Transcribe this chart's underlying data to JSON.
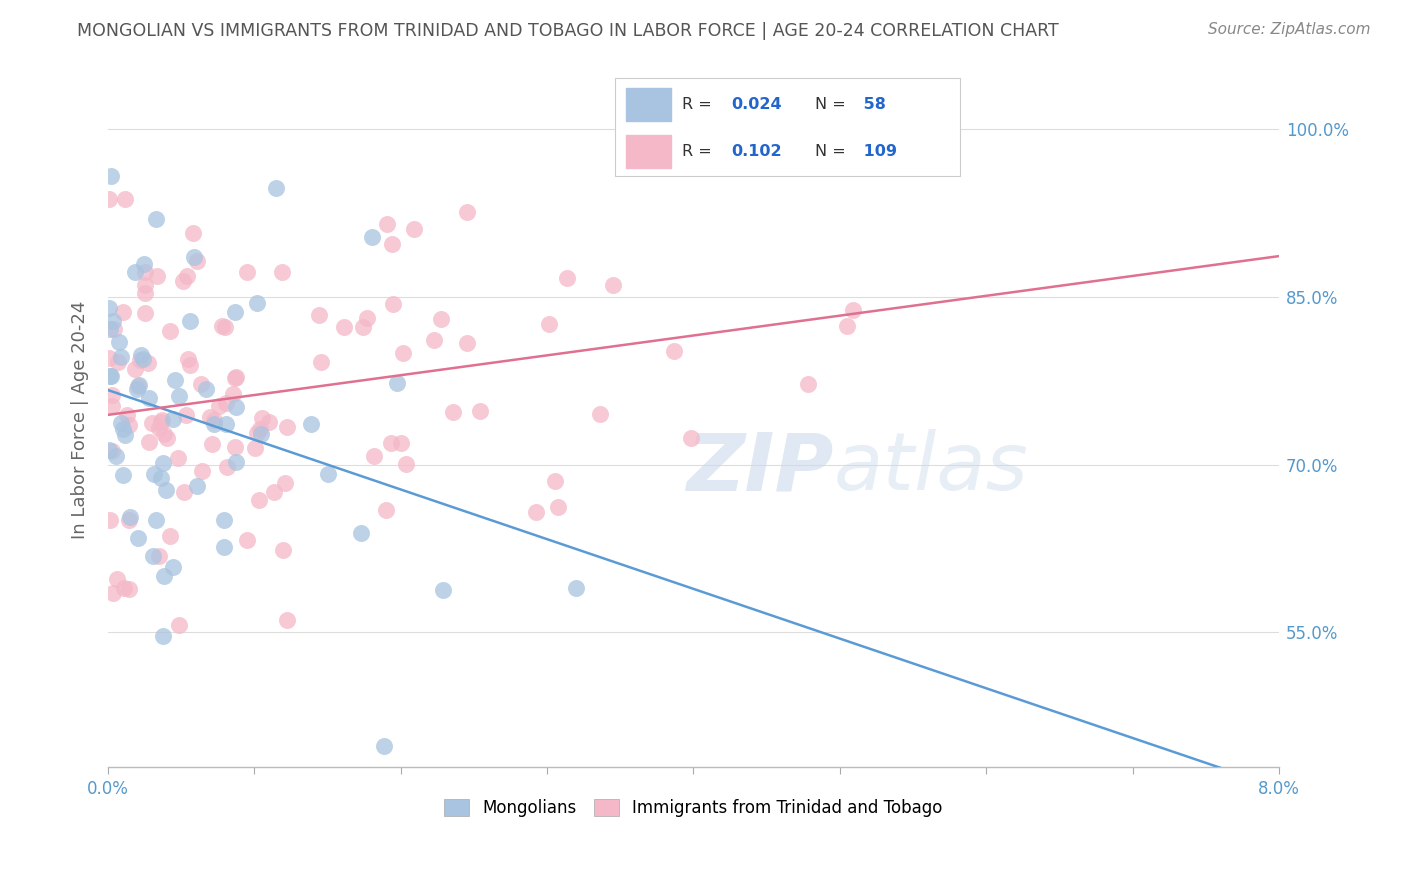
{
  "title": "MONGOLIAN VS IMMIGRANTS FROM TRINIDAD AND TOBAGO IN LABOR FORCE | AGE 20-24 CORRELATION CHART",
  "source": "Source: ZipAtlas.com",
  "ylabel": "In Labor Force | Age 20-24",
  "mongolian_color": "#a8c4e0",
  "tt_color": "#f4b8c8",
  "mongolian_line_color": "#5b9bd5",
  "tt_line_color": "#e07090",
  "R_mongolian": 0.024,
  "N_mongolian": 58,
  "R_tt": 0.102,
  "N_tt": 109,
  "ytick_labels": [
    "55.0%",
    "70.0%",
    "85.0%",
    "100.0%"
  ],
  "ytick_values": [
    0.55,
    0.7,
    0.85,
    1.0
  ],
  "xlim": [
    0.0,
    0.08
  ],
  "ylim": [
    0.43,
    1.05
  ]
}
